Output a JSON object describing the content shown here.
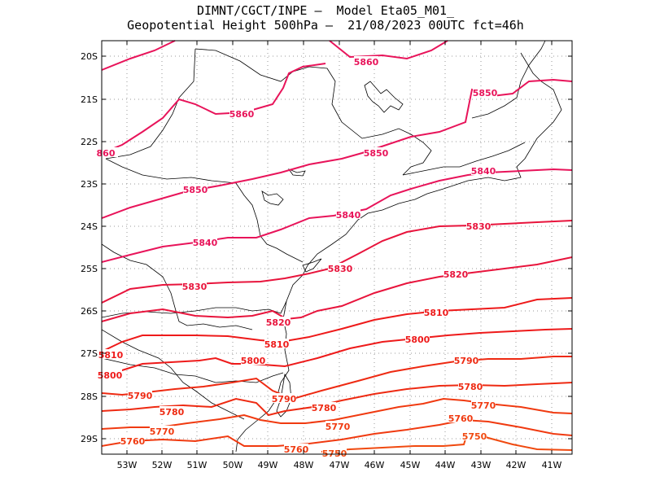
{
  "header": {
    "line1": "DIMNT/CGCT/INPE —  Model Eta05_M01_",
    "line2": "Geopotential Height 500hPa —  21/08/2023 00UTC fct=46h"
  },
  "axes": {
    "lat_labels": [
      "20S",
      "21S",
      "22S",
      "23S",
      "24S",
      "25S",
      "26S",
      "27S",
      "28S",
      "29S"
    ],
    "lon_labels": [
      "53W",
      "52W",
      "51W",
      "50W",
      "49W",
      "48W",
      "47W",
      "46W",
      "45W",
      "44W",
      "43W",
      "42W",
      "41W"
    ]
  },
  "contours": [
    {
      "level": 5860,
      "color": "#e8145a",
      "labels": [
        "5860",
        "5860",
        "860"
      ]
    },
    {
      "level": 5850,
      "color": "#e8145a",
      "labels": [
        "5850",
        "5850",
        "5850"
      ]
    },
    {
      "level": 5840,
      "color": "#e8145a",
      "labels": [
        "5840",
        "5840",
        "5840"
      ]
    },
    {
      "level": 5830,
      "color": "#e8143c",
      "labels": [
        "5830",
        "5830",
        "5830"
      ]
    },
    {
      "level": 5820,
      "color": "#e8143c",
      "labels": [
        "5820",
        "5820"
      ]
    },
    {
      "level": 5810,
      "color": "#ee1a1a",
      "labels": [
        "5810",
        "5810",
        "5810"
      ]
    },
    {
      "level": 5800,
      "color": "#ee1a1a",
      "labels": [
        "5800",
        "5800",
        "5800"
      ]
    },
    {
      "level": 5790,
      "color": "#ee2a12",
      "labels": [
        "5790",
        "5790",
        "5790"
      ]
    },
    {
      "level": 5780,
      "color": "#ee2a12",
      "labels": [
        "5780",
        "5780",
        "5780"
      ]
    },
    {
      "level": 5770,
      "color": "#f03a10",
      "labels": [
        "5770",
        "5770",
        "5770"
      ]
    },
    {
      "level": 5760,
      "color": "#f03a10",
      "labels": [
        "5760",
        "5760",
        "5760"
      ]
    },
    {
      "level": 5750,
      "color": "#f04a10",
      "labels": [
        "5750",
        "5750"
      ]
    }
  ]
}
